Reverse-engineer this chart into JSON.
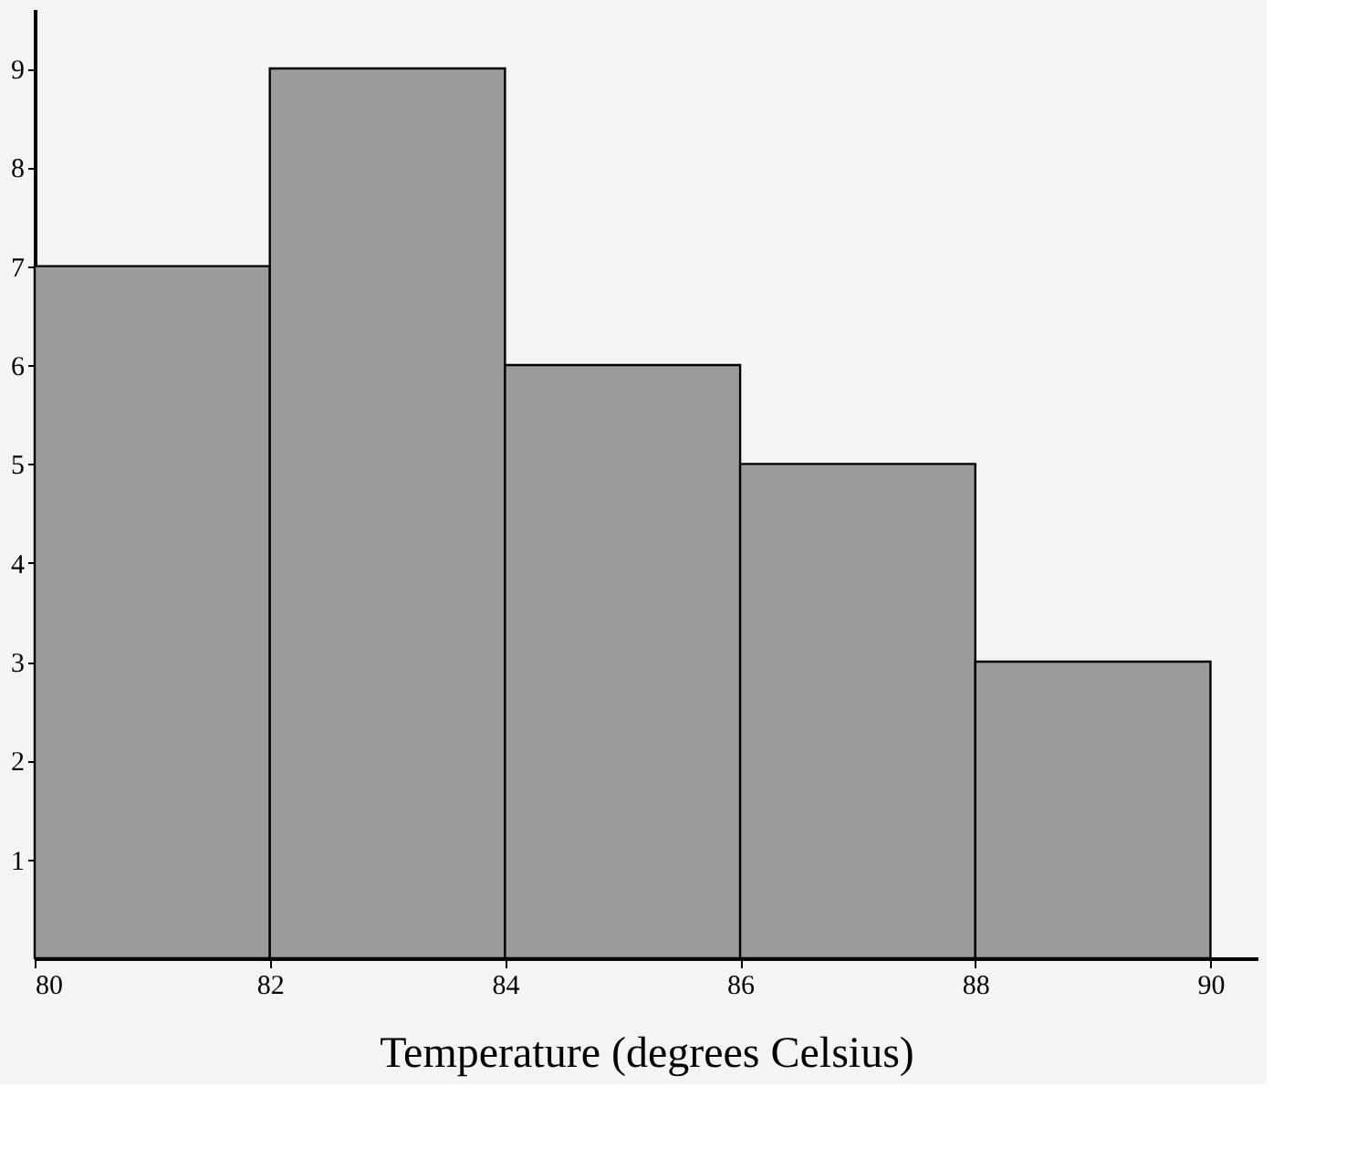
{
  "chart_data": {
    "type": "histogram",
    "xlabel": "Temperature (degrees Celsius)",
    "bins": [
      80,
      82,
      84,
      86,
      88,
      90
    ],
    "values": [
      7,
      9,
      6,
      5,
      3
    ],
    "color": "#9c9c9c",
    "xlim": [
      80,
      90.4
    ],
    "xticks": [
      80,
      82,
      84,
      86,
      88,
      90
    ],
    "ylim": [
      0,
      9.6
    ],
    "yticks": [
      1,
      2,
      3,
      4,
      5,
      6,
      7,
      8,
      9
    ],
    "grid": false
  }
}
